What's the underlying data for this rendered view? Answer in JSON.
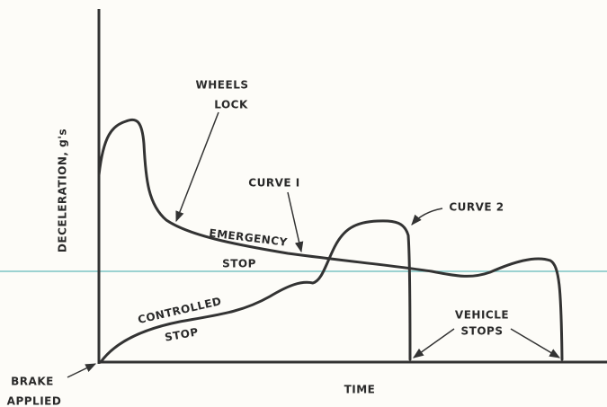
{
  "axes": {
    "y_label": "DECELERATION, g's",
    "x_label": "TIME"
  },
  "labels": {
    "wheels_lock": [
      "WHEELS",
      "LOCK"
    ],
    "curve_1": "CURVE I",
    "curve_2": "CURVE 2",
    "emergency_stop": [
      "EMERGENCY",
      "STOP"
    ],
    "controlled_stop": [
      "CONTROLLED",
      "STOP"
    ],
    "vehicle_stops": [
      "VEHICLE",
      "STOPS"
    ],
    "brake_applied": [
      "BRAKE",
      "APPLIED"
    ]
  }
}
